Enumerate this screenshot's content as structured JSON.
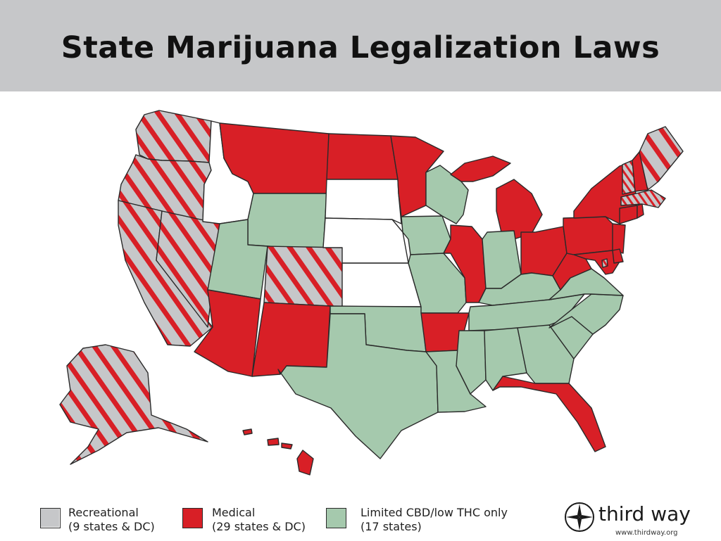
{
  "title": "State Marijuana Legalization Laws",
  "colors": {
    "recreational_gray": "#c6c7c9",
    "medical_red": "#d81f26",
    "cbd_green": "#a5c9ad",
    "no_program_white": "#ffffff",
    "border": "#2a2a2a"
  },
  "legend": [
    {
      "label": "Recreational",
      "sub": "(9 states & DC)",
      "style": "stripes"
    },
    {
      "label": "Medical",
      "sub": "(29 states & DC)",
      "style": "red"
    },
    {
      "label": "Limited CBD/low THC only",
      "sub": "(17 states)",
      "style": "green"
    }
  ],
  "brand": {
    "name": "third way",
    "url": "www.thirdway.org",
    "logo_icon": "compass-icon"
  },
  "states": {
    "recreational": [
      "WA",
      "OR",
      "CA",
      "NV",
      "CO",
      "AK",
      "ME",
      "VT",
      "MA",
      "DC"
    ],
    "medical": [
      "MT",
      "ND",
      "MN",
      "MI",
      "NY",
      "NH",
      "PA",
      "NJ",
      "CT",
      "RI",
      "MD",
      "DE",
      "OH",
      "WV",
      "IL",
      "AR",
      "AZ",
      "NM",
      "FL",
      "HI"
    ],
    "cbd_only": [
      "WY",
      "UT",
      "WI",
      "IA",
      "MO",
      "IN",
      "KY",
      "VA",
      "NC",
      "SC",
      "TN",
      "GA",
      "AL",
      "MS",
      "LA",
      "TX",
      "OK"
    ],
    "no_program": [
      "ID",
      "SD",
      "NE",
      "KS"
    ]
  }
}
